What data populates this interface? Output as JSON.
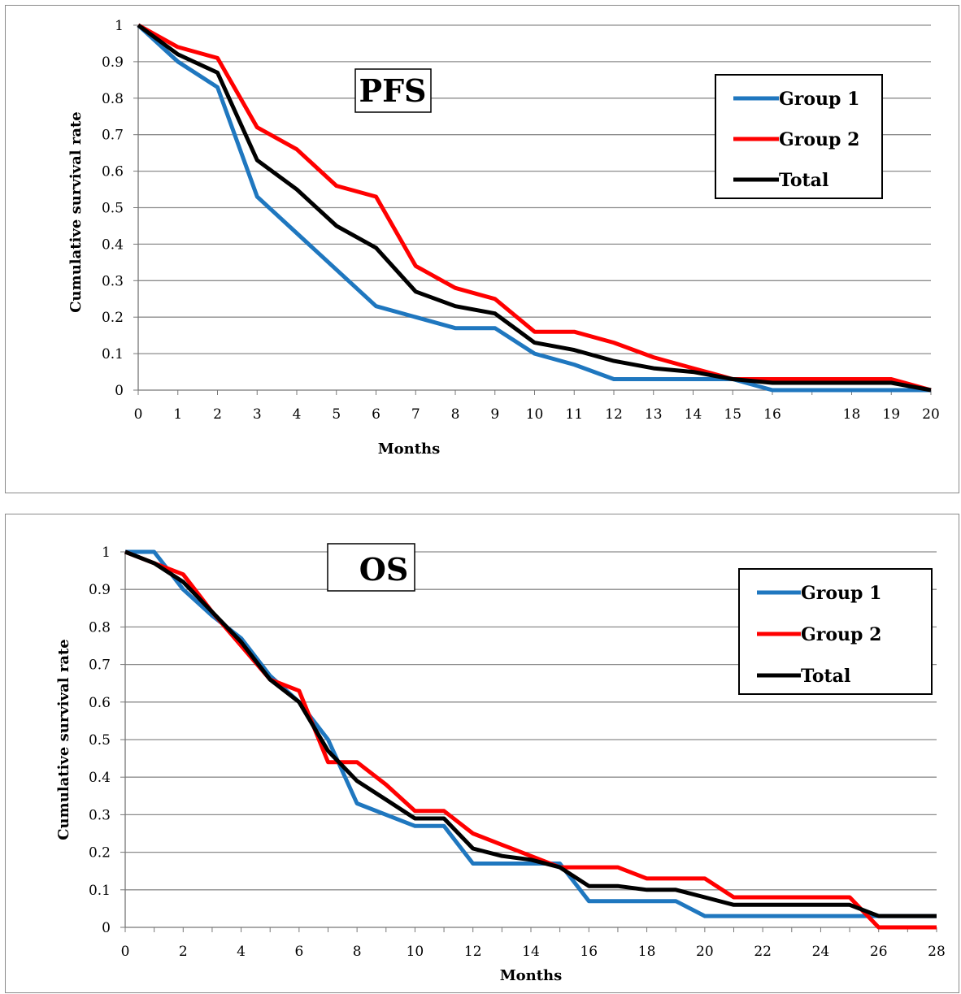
{
  "chart_data": [
    {
      "type": "line",
      "title": "PFS",
      "xlabel": "Months",
      "ylabel": "Cumulative survival rate",
      "xlim": [
        0,
        20
      ],
      "ylim": [
        0,
        1
      ],
      "x_ticks": [
        0,
        1,
        2,
        3,
        4,
        5,
        6,
        7,
        8,
        9,
        10,
        11,
        12,
        13,
        14,
        15,
        16,
        18,
        19,
        20
      ],
      "y_ticks": [
        "0",
        "0.1",
        "0.2",
        "0.3",
        "0.4",
        "0.5",
        "0.6",
        "0.7",
        "0.8",
        "0.9",
        "1"
      ],
      "grid": true,
      "legend_position": "top-right",
      "series": [
        {
          "name": "Group 1",
          "color": "#1f77bf",
          "points": [
            [
              0,
              1
            ],
            [
              1,
              0.9
            ],
            [
              2,
              0.83
            ],
            [
              3,
              0.53
            ],
            [
              4,
              0.43
            ],
            [
              5,
              0.33
            ],
            [
              6,
              0.23
            ],
            [
              7,
              0.2
            ],
            [
              8,
              0.17
            ],
            [
              9,
              0.17
            ],
            [
              10,
              0.1
            ],
            [
              11,
              0.07
            ],
            [
              12,
              0.03
            ],
            [
              13,
              0.03
            ],
            [
              14,
              0.03
            ],
            [
              15,
              0.03
            ],
            [
              16,
              0
            ],
            [
              17,
              0
            ],
            [
              18,
              0
            ],
            [
              19,
              0
            ],
            [
              20,
              0
            ]
          ]
        },
        {
          "name": "Group 2",
          "color": "#ff0000",
          "points": [
            [
              0,
              1
            ],
            [
              1,
              0.94
            ],
            [
              2,
              0.91
            ],
            [
              3,
              0.72
            ],
            [
              4,
              0.66
            ],
            [
              5,
              0.56
            ],
            [
              6,
              0.53
            ],
            [
              7,
              0.34
            ],
            [
              8,
              0.28
            ],
            [
              9,
              0.25
            ],
            [
              10,
              0.16
            ],
            [
              11,
              0.16
            ],
            [
              12,
              0.13
            ],
            [
              13,
              0.09
            ],
            [
              14,
              0.06
            ],
            [
              15,
              0.03
            ],
            [
              16,
              0.03
            ],
            [
              17,
              0.03
            ],
            [
              18,
              0.03
            ],
            [
              19,
              0.03
            ],
            [
              20,
              0
            ]
          ]
        },
        {
          "name": "Total",
          "color": "#000000",
          "points": [
            [
              0,
              1
            ],
            [
              1,
              0.92
            ],
            [
              2,
              0.87
            ],
            [
              3,
              0.63
            ],
            [
              4,
              0.55
            ],
            [
              5,
              0.45
            ],
            [
              6,
              0.39
            ],
            [
              7,
              0.27
            ],
            [
              8,
              0.23
            ],
            [
              9,
              0.21
            ],
            [
              10,
              0.13
            ],
            [
              11,
              0.11
            ],
            [
              12,
              0.08
            ],
            [
              13,
              0.06
            ],
            [
              14,
              0.05
            ],
            [
              15,
              0.03
            ],
            [
              16,
              0.02
            ],
            [
              17,
              0.02
            ],
            [
              18,
              0.02
            ],
            [
              19,
              0.02
            ],
            [
              20,
              0
            ]
          ]
        }
      ]
    },
    {
      "type": "line",
      "title": "OS",
      "xlabel": "Months",
      "ylabel": "Cumulative survival rate",
      "xlim": [
        0,
        28
      ],
      "ylim": [
        0,
        1
      ],
      "x_ticks": [
        0,
        2,
        4,
        6,
        8,
        10,
        12,
        14,
        16,
        18,
        20,
        22,
        24,
        26,
        28
      ],
      "y_ticks": [
        "0",
        "0.1",
        "0.2",
        "0.3",
        "0.4",
        "0.5",
        "0.6",
        "0.7",
        "0.8",
        "0.9",
        "1"
      ],
      "grid": true,
      "legend_position": "top-right",
      "series": [
        {
          "name": "Group 1",
          "color": "#1f77bf",
          "points": [
            [
              0,
              1
            ],
            [
              1,
              1
            ],
            [
              2,
              0.9
            ],
            [
              3,
              0.83
            ],
            [
              4,
              0.77
            ],
            [
              5,
              0.67
            ],
            [
              6,
              0.6
            ],
            [
              7,
              0.5
            ],
            [
              8,
              0.33
            ],
            [
              9,
              0.3
            ],
            [
              10,
              0.27
            ],
            [
              11,
              0.27
            ],
            [
              12,
              0.17
            ],
            [
              13,
              0.17
            ],
            [
              14,
              0.17
            ],
            [
              15,
              0.17
            ],
            [
              16,
              0.07
            ],
            [
              17,
              0.07
            ],
            [
              18,
              0.07
            ],
            [
              19,
              0.07
            ],
            [
              20,
              0.03
            ],
            [
              21,
              0.03
            ],
            [
              22,
              0.03
            ],
            [
              23,
              0.03
            ],
            [
              24,
              0.03
            ],
            [
              25,
              0.03
            ],
            [
              26,
              0.03
            ],
            [
              27,
              0.03
            ],
            [
              28,
              0.03
            ]
          ]
        },
        {
          "name": "Group 2",
          "color": "#ff0000",
          "points": [
            [
              0,
              1
            ],
            [
              1,
              0.97
            ],
            [
              2,
              0.94
            ],
            [
              3,
              0.84
            ],
            [
              4,
              0.75
            ],
            [
              5,
              0.66
            ],
            [
              6,
              0.63
            ],
            [
              7,
              0.44
            ],
            [
              8,
              0.44
            ],
            [
              9,
              0.38
            ],
            [
              10,
              0.31
            ],
            [
              11,
              0.31
            ],
            [
              12,
              0.25
            ],
            [
              13,
              0.22
            ],
            [
              14,
              0.19
            ],
            [
              15,
              0.16
            ],
            [
              16,
              0.16
            ],
            [
              17,
              0.16
            ],
            [
              18,
              0.13
            ],
            [
              19,
              0.13
            ],
            [
              20,
              0.13
            ],
            [
              21,
              0.08
            ],
            [
              22,
              0.08
            ],
            [
              23,
              0.08
            ],
            [
              24,
              0.08
            ],
            [
              25,
              0.08
            ],
            [
              26,
              0
            ],
            [
              27,
              0
            ],
            [
              28,
              0
            ]
          ]
        },
        {
          "name": "Total",
          "color": "#000000",
          "points": [
            [
              0,
              1
            ],
            [
              1,
              0.97
            ],
            [
              2,
              0.92
            ],
            [
              3,
              0.84
            ],
            [
              4,
              0.76
            ],
            [
              5,
              0.66
            ],
            [
              6,
              0.6
            ],
            [
              7,
              0.47
            ],
            [
              8,
              0.39
            ],
            [
              9,
              0.34
            ],
            [
              10,
              0.29
            ],
            [
              11,
              0.29
            ],
            [
              12,
              0.21
            ],
            [
              13,
              0.19
            ],
            [
              14,
              0.18
            ],
            [
              15,
              0.16
            ],
            [
              16,
              0.11
            ],
            [
              17,
              0.11
            ],
            [
              18,
              0.1
            ],
            [
              19,
              0.1
            ],
            [
              20,
              0.08
            ],
            [
              21,
              0.06
            ],
            [
              22,
              0.06
            ],
            [
              23,
              0.06
            ],
            [
              24,
              0.06
            ],
            [
              25,
              0.06
            ],
            [
              26,
              0.03
            ],
            [
              27,
              0.03
            ],
            [
              28,
              0.03
            ]
          ]
        }
      ]
    }
  ]
}
